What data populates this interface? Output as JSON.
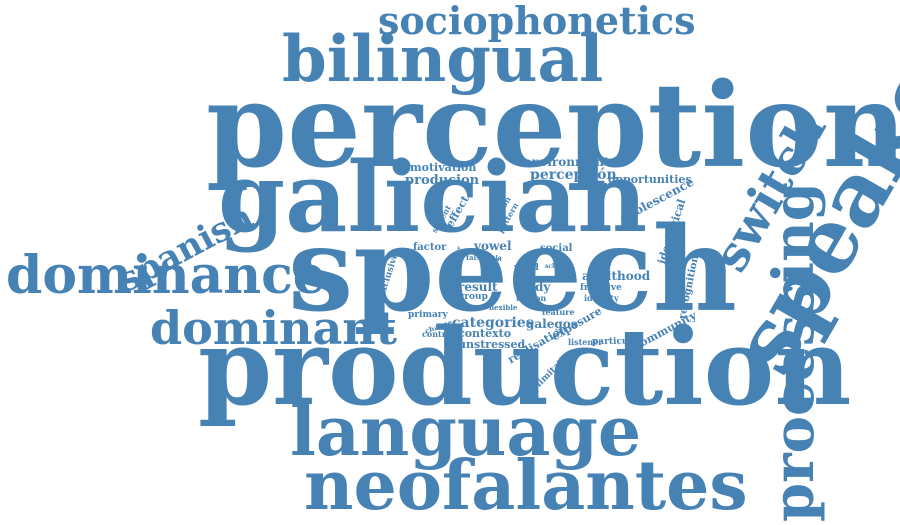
{
  "cloud": {
    "color": "#4682b4",
    "words": [
      "sociophonetics",
      "bilingual",
      "perception",
      "speaker",
      "galician",
      "switch",
      "speech",
      "spanish",
      "dominance",
      "processing",
      "dominant",
      "production",
      "language",
      "neofalantes",
      "motivation",
      "environment",
      "producion",
      "percepción",
      "opportunities",
      "adolescence",
      "ideological",
      "effect",
      "salient",
      "function",
      "pattern",
      "factor",
      "vowel",
      "social",
      "recognition",
      "exclusive",
      "false",
      "realisation",
      "result",
      "study",
      "adulthood",
      "group",
      "word",
      "school",
      "reason",
      "fricative",
      "identity",
      "primary",
      "flexible",
      "feature",
      "change",
      "categories",
      "galegos",
      "community",
      "contrast",
      "contexto",
      "exposure",
      "unstressed",
      "listener",
      "particular",
      "limitation",
      "rule",
      "knowledge",
      "attitude",
      "context"
    ]
  }
}
